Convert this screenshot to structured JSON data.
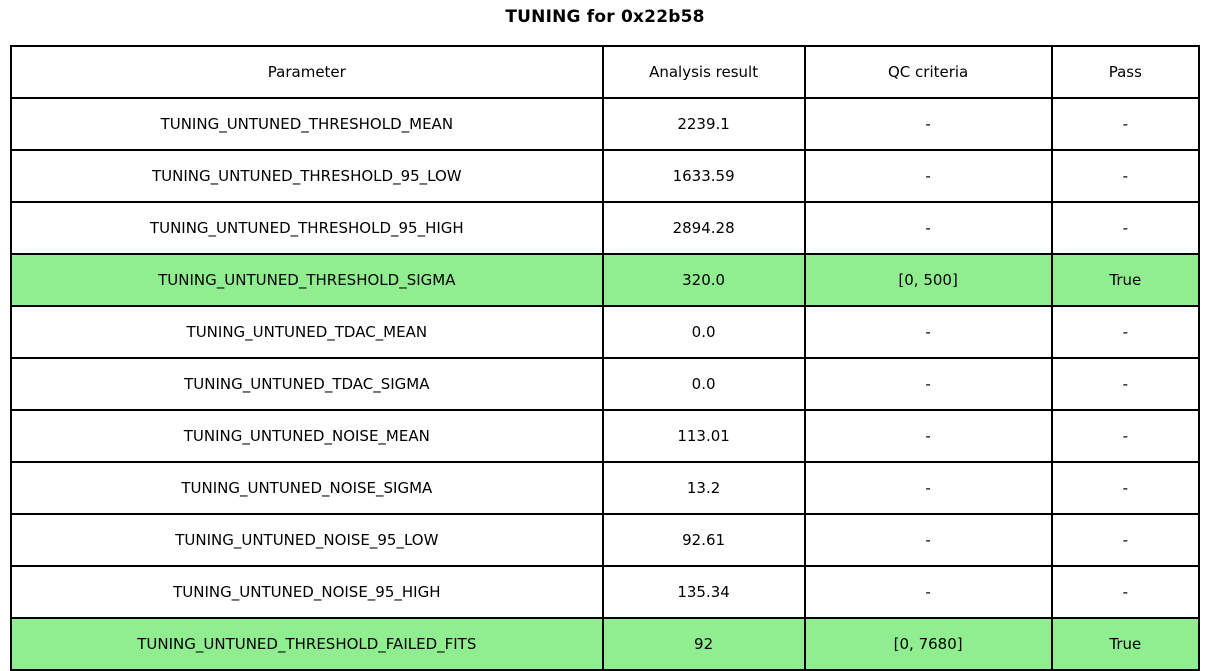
{
  "chart_data": {
    "type": "table",
    "title": "TUNING for 0x22b58",
    "columns": [
      "Parameter",
      "Analysis result",
      "QC criteria",
      "Pass"
    ],
    "rows": [
      {
        "parameter": "TUNING_UNTUNED_THRESHOLD_MEAN",
        "result": "2239.1",
        "qc": "-",
        "pass": "-",
        "highlight": false
      },
      {
        "parameter": "TUNING_UNTUNED_THRESHOLD_95_LOW",
        "result": "1633.59",
        "qc": "-",
        "pass": "-",
        "highlight": false
      },
      {
        "parameter": "TUNING_UNTUNED_THRESHOLD_95_HIGH",
        "result": "2894.28",
        "qc": "-",
        "pass": "-",
        "highlight": false
      },
      {
        "parameter": "TUNING_UNTUNED_THRESHOLD_SIGMA",
        "result": "320.0",
        "qc": "[0, 500]",
        "pass": "True",
        "highlight": true
      },
      {
        "parameter": "TUNING_UNTUNED_TDAC_MEAN",
        "result": "0.0",
        "qc": "-",
        "pass": "-",
        "highlight": false
      },
      {
        "parameter": "TUNING_UNTUNED_TDAC_SIGMA",
        "result": "0.0",
        "qc": "-",
        "pass": "-",
        "highlight": false
      },
      {
        "parameter": "TUNING_UNTUNED_NOISE_MEAN",
        "result": "113.01",
        "qc": "-",
        "pass": "-",
        "highlight": false
      },
      {
        "parameter": "TUNING_UNTUNED_NOISE_SIGMA",
        "result": "13.2",
        "qc": "-",
        "pass": "-",
        "highlight": false
      },
      {
        "parameter": "TUNING_UNTUNED_NOISE_95_LOW",
        "result": "92.61",
        "qc": "-",
        "pass": "-",
        "highlight": false
      },
      {
        "parameter": "TUNING_UNTUNED_NOISE_95_HIGH",
        "result": "135.34",
        "qc": "-",
        "pass": "-",
        "highlight": false
      },
      {
        "parameter": "TUNING_UNTUNED_THRESHOLD_FAILED_FITS",
        "result": "92",
        "qc": "[0, 7680]",
        "pass": "True",
        "highlight": true
      }
    ],
    "colors": {
      "highlight_pass": "#90EE90",
      "border": "#000000",
      "background": "#FFFFFF",
      "text": "#000000"
    }
  }
}
